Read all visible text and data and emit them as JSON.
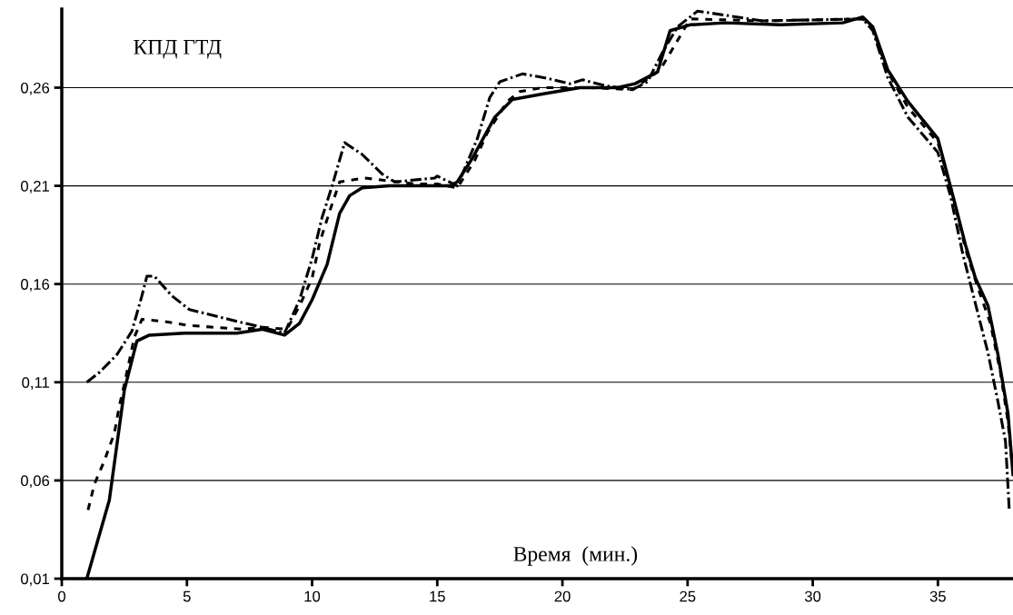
{
  "chart_data": {
    "type": "line",
    "xlabel": "Время  (мин.)",
    "ylabel": "КПД ГТД",
    "xlim": [
      0,
      38
    ],
    "xticks": [
      0,
      5,
      10,
      15,
      20,
      25,
      30,
      35
    ],
    "ylim": [
      0.01,
      0.3
    ],
    "yticks": [
      {
        "value": 0.01,
        "label": "0,01"
      },
      {
        "value": 0.06,
        "label": "0,06"
      },
      {
        "value": 0.11,
        "label": "0,11"
      },
      {
        "value": 0.16,
        "label": "0,16"
      },
      {
        "value": 0.21,
        "label": "0,21"
      },
      {
        "value": 0.26,
        "label": "0,26"
      }
    ],
    "grid": "y",
    "legend": false,
    "marker": "none",
    "series": [
      {
        "color": "#000000",
        "line_style": "solid",
        "x": [
          1.0,
          1.9,
          2.5,
          3.0,
          3.5,
          4.9,
          7.0,
          8.0,
          8.9,
          9.5,
          10.0,
          10.6,
          11.1,
          11.5,
          12.0,
          13.1,
          15.5,
          15.8,
          16.4,
          17.3,
          18.0,
          19.3,
          20.7,
          22.2,
          22.9,
          23.8,
          24.3,
          25.1,
          26.5,
          28.7,
          31.2,
          32.0,
          32.4,
          33.0,
          33.8,
          35.0,
          35.7,
          36.1,
          36.5,
          37.0,
          37.4,
          37.8,
          38.0
        ],
        "values": [
          0.01,
          0.05,
          0.106,
          0.131,
          0.134,
          0.135,
          0.135,
          0.137,
          0.134,
          0.14,
          0.152,
          0.17,
          0.196,
          0.205,
          0.209,
          0.21,
          0.21,
          0.212,
          0.224,
          0.245,
          0.254,
          0.257,
          0.26,
          0.26,
          0.262,
          0.268,
          0.289,
          0.292,
          0.293,
          0.292,
          0.293,
          0.296,
          0.291,
          0.269,
          0.253,
          0.234,
          0.2,
          0.18,
          0.163,
          0.149,
          0.124,
          0.094,
          0.063
        ]
      },
      {
        "color": "#000000",
        "line_style": "dashed",
        "x": [
          1.0,
          1.5,
          2.2,
          2.8,
          3.2,
          3.4,
          3.7,
          4.4,
          5.1,
          7.0,
          8.0,
          8.9,
          9.5,
          10.0,
          10.4,
          10.8,
          11.3,
          12.0,
          12.8,
          13.3,
          14.9,
          15.0,
          15.8,
          16.6,
          17.1,
          17.5,
          18.4,
          19.3,
          20.3,
          20.8,
          21.7,
          22.8,
          23.4,
          24.0,
          24.6,
          25.4,
          28.0,
          32.0,
          32.4,
          33.0,
          33.8,
          35.0,
          35.5,
          36.0,
          36.5,
          37.0,
          37.4,
          37.7,
          37.85
        ],
        "values": [
          0.11,
          0.115,
          0.124,
          0.136,
          0.154,
          0.164,
          0.164,
          0.154,
          0.147,
          0.141,
          0.138,
          0.135,
          0.152,
          0.173,
          0.194,
          0.21,
          0.232,
          0.226,
          0.216,
          0.212,
          0.214,
          0.215,
          0.21,
          0.234,
          0.255,
          0.263,
          0.267,
          0.265,
          0.262,
          0.264,
          0.261,
          0.259,
          0.263,
          0.278,
          0.291,
          0.299,
          0.294,
          0.295,
          0.289,
          0.265,
          0.245,
          0.227,
          0.205,
          0.175,
          0.15,
          0.125,
          0.1,
          0.08,
          0.045
        ]
      },
      {
        "color": "#000000",
        "line_style": "dotted",
        "x": [
          1.05,
          1.3,
          1.7,
          2.1,
          2.3,
          2.5,
          2.7,
          2.9,
          3.2,
          4.1,
          5.0,
          6.1,
          7.2,
          8.0,
          9.0,
          9.5,
          10.0,
          10.3,
          10.7,
          11.1,
          12.1,
          14.1,
          15.0,
          15.8,
          16.5,
          17.0,
          17.8,
          18.3,
          19.2,
          21.1,
          22.8,
          23.9,
          24.6,
          25.1,
          28.0,
          32.0,
          32.4,
          33.0,
          33.8,
          35.0,
          35.6,
          36.1,
          36.6,
          37.1,
          37.5,
          37.8,
          37.95
        ],
        "values": [
          0.045,
          0.058,
          0.07,
          0.084,
          0.098,
          0.109,
          0.121,
          0.133,
          0.142,
          0.141,
          0.139,
          0.138,
          0.137,
          0.138,
          0.137,
          0.149,
          0.163,
          0.181,
          0.197,
          0.212,
          0.214,
          0.211,
          0.211,
          0.209,
          0.223,
          0.237,
          0.253,
          0.258,
          0.26,
          0.26,
          0.259,
          0.269,
          0.284,
          0.295,
          0.294,
          0.295,
          0.29,
          0.268,
          0.25,
          0.232,
          0.205,
          0.178,
          0.158,
          0.14,
          0.115,
          0.09,
          0.07
        ]
      }
    ]
  }
}
